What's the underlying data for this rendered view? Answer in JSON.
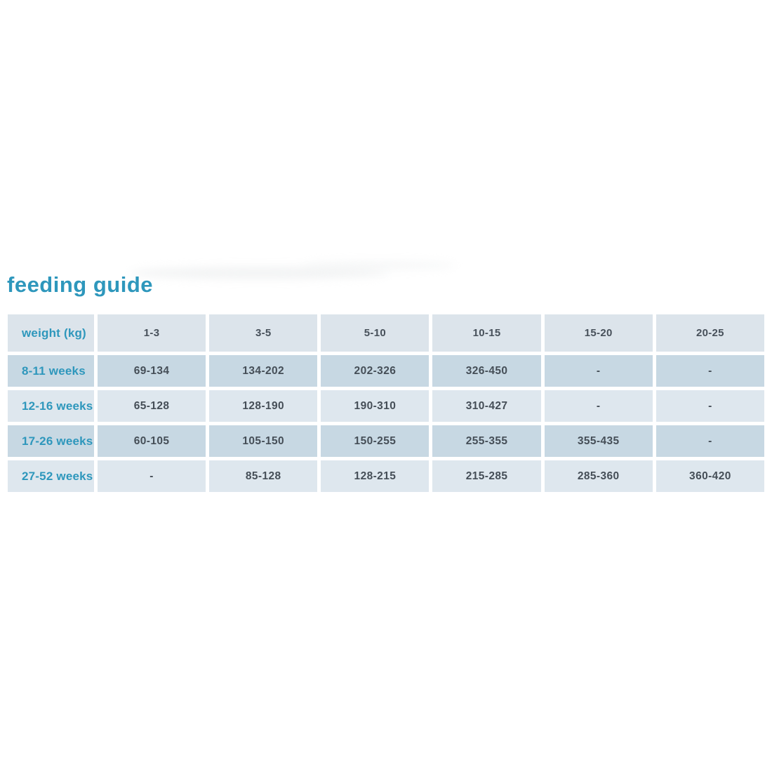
{
  "page": {
    "title": "feeding guide"
  },
  "colors": {
    "accent_teal": "#2e97bc",
    "header_bg": "#dce4eb",
    "row_dark_bg": "#c7d8e3",
    "row_light_bg": "#dee7ee",
    "value_text": "#454e57",
    "background": "#ffffff"
  },
  "table": {
    "header": {
      "row_label": "weight (kg)",
      "columns": [
        "1-3",
        "3-5",
        "5-10",
        "10-15",
        "15-20",
        "20-25"
      ]
    },
    "rows": [
      {
        "label": "8-11 weeks",
        "values": [
          "69-134",
          "134-202",
          "202-326",
          "326-450",
          "-",
          "-"
        ]
      },
      {
        "label": "12-16 weeks",
        "values": [
          "65-128",
          "128-190",
          "190-310",
          "310-427",
          "-",
          "-"
        ]
      },
      {
        "label": "17-26 weeks",
        "values": [
          "60-105",
          "105-150",
          "150-255",
          "255-355",
          "355-435",
          "-"
        ]
      },
      {
        "label": "27-52 weeks",
        "values": [
          "-",
          "85-128",
          "128-215",
          "215-285",
          "285-360",
          "360-420"
        ]
      }
    ]
  }
}
